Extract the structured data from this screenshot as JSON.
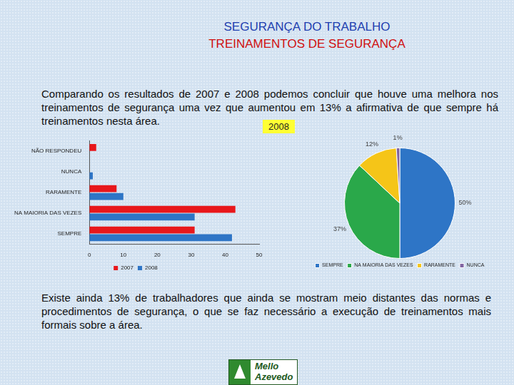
{
  "header": {
    "title": "SEGURANÇA DO TRABALHO",
    "subtitle": "TREINAMENTOS DE SEGURANÇA"
  },
  "text": {
    "intro": "Comparando os resultados de 2007 e 2008 podemos concluir que houve uma melhora nos treinamentos de segurança uma vez que aumentou em 13% a afirmativa de que sempre há treinamentos nesta área.",
    "conclusion": "Existe ainda 13% de trabalhadores que ainda se mostram meio distantes das normas e procedimentos de segurança, o que se faz necessário a execução de treinamentos mais formais sobre a área."
  },
  "logo": {
    "text": [
      "Mello",
      "Azevedo"
    ]
  },
  "chart_data": [
    {
      "type": "bar",
      "orientation": "horizontal",
      "categories": [
        "NÃO RESPONDEU",
        "NUNCA",
        "RARAMENTE",
        "NA MAIORIA DAS VEZES",
        "SEMPRE"
      ],
      "series": [
        {
          "name": "2007",
          "color": "#e8171b",
          "values": [
            2,
            0,
            8,
            43,
            31
          ]
        },
        {
          "name": "2008",
          "color": "#2e75c6",
          "values": [
            0,
            1,
            10,
            31,
            42
          ]
        }
      ],
      "xlim": [
        0,
        50
      ],
      "xticks": [
        0,
        10,
        20,
        30,
        40,
        50
      ],
      "grid": false,
      "legend": "bottom"
    },
    {
      "type": "pie",
      "title": "2008",
      "categories": [
        "SEMPRE",
        "NA MAIORIA DAS VEZES",
        "RARAMENTE",
        "NUNCA"
      ],
      "values": [
        50,
        37,
        12,
        1
      ],
      "value_labels": [
        "50%",
        "37%",
        "12%",
        "1%"
      ],
      "colors": [
        "#2e75c6",
        "#2aa84a",
        "#f5c518",
        "#8064a2"
      ],
      "data_labels": true,
      "legend": "bottom"
    }
  ]
}
